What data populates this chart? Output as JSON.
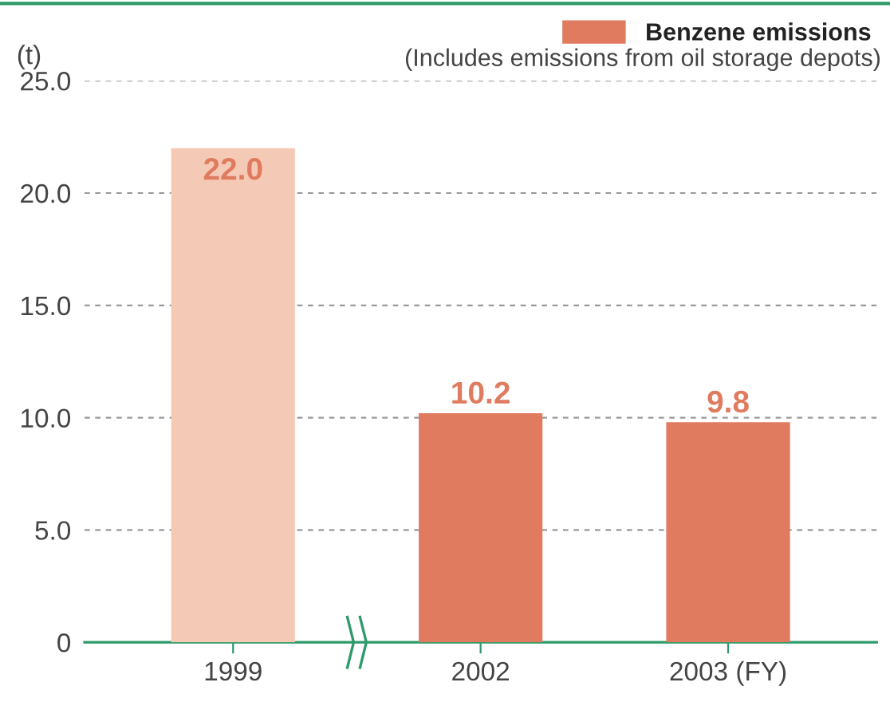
{
  "chart_data": {
    "type": "bar",
    "categories": [
      "1999",
      "2002",
      "2003 (FY)"
    ],
    "series": [
      {
        "name": "Benzene emissions",
        "color": "#e07b5f",
        "colors": [
          "#f4cab6",
          "#e07b5f",
          "#e07b5f"
        ],
        "values": [
          22.0,
          10.2,
          9.8
        ],
        "value_labels": [
          "22.0",
          "10.2",
          "9.8"
        ]
      }
    ],
    "ylabel": "(t)",
    "annotations": [
      "(Includes emissions from oil storage depots)"
    ],
    "ylim": [
      0,
      25
    ],
    "yticks": [
      0,
      {
        "value": 5,
        "label": "5.0"
      },
      {
        "value": 10,
        "label": "10.0"
      },
      {
        "value": 15,
        "label": "15.0"
      },
      {
        "value": 20,
        "label": "20.0"
      },
      {
        "value": 25,
        "label": "25.0"
      }
    ],
    "grid": "y",
    "legend": "top right"
  }
}
